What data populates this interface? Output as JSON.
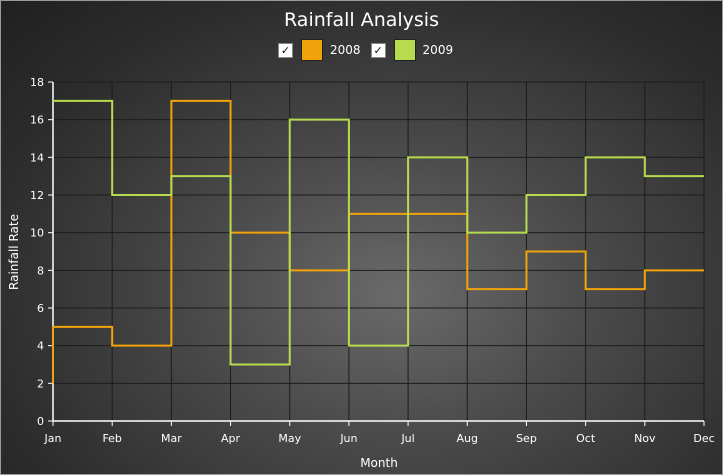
{
  "chart_data": {
    "type": "line",
    "step": true,
    "title": "Rainfall Analysis",
    "xlabel": "Month",
    "ylabel": "Rainfall Rate",
    "categories": [
      "Jan",
      "Feb",
      "Mar",
      "Apr",
      "May",
      "Jun",
      "Jul",
      "Aug",
      "Sep",
      "Oct",
      "Nov",
      "Dec"
    ],
    "ylim": [
      0,
      18
    ],
    "yticks": [
      0,
      2,
      4,
      6,
      8,
      10,
      12,
      14,
      16,
      18
    ],
    "grid": true,
    "legend_position": "top",
    "series": [
      {
        "name": "2008",
        "color": "#f0a30a",
        "checked": true,
        "values": [
          5,
          4,
          17,
          10,
          8,
          11,
          11,
          7,
          9,
          7,
          8,
          8
        ]
      },
      {
        "name": "2009",
        "color": "#b7db4f",
        "checked": true,
        "values": [
          17,
          12,
          13,
          3,
          16,
          4,
          14,
          10,
          12,
          14,
          13,
          13
        ]
      }
    ]
  },
  "legend": {
    "check_mark": "✓"
  }
}
